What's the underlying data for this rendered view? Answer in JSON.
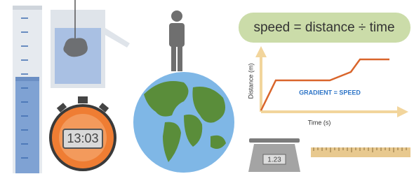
{
  "formula": "speed = distance ÷ time",
  "graph": {
    "y_label": "Distance (m)",
    "x_label": "Time (s)",
    "annotation": "GRADIENT = SPEED"
  },
  "stopwatch": {
    "display": "13:03"
  },
  "scale": {
    "display": "1.23"
  }
}
